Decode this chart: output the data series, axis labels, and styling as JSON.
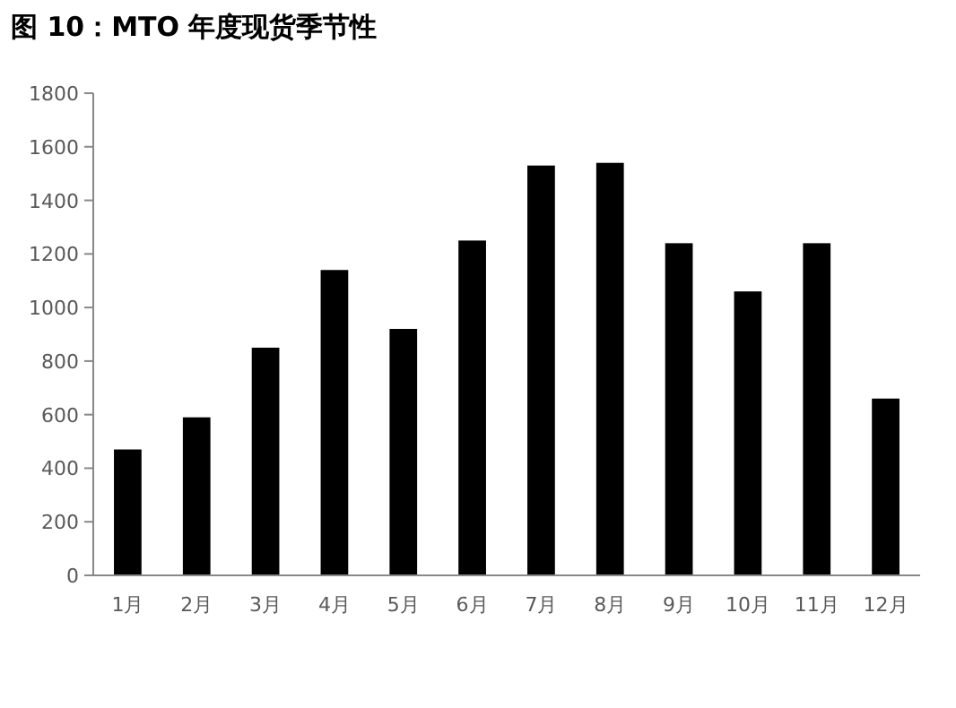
{
  "chart_data": {
    "type": "bar",
    "title": "图 10：MTO 年度现货季节性",
    "categories": [
      "1月",
      "2月",
      "3月",
      "4月",
      "5月",
      "6月",
      "7月",
      "8月",
      "9月",
      "10月",
      "11月",
      "12月"
    ],
    "values": [
      470,
      590,
      850,
      1140,
      920,
      1250,
      1530,
      1540,
      1240,
      1060,
      1240,
      660
    ],
    "color": "#000000",
    "ylim": [
      0,
      1800
    ],
    "yticks": [
      0,
      200,
      400,
      600,
      800,
      1000,
      1200,
      1400,
      1600,
      1800
    ]
  }
}
